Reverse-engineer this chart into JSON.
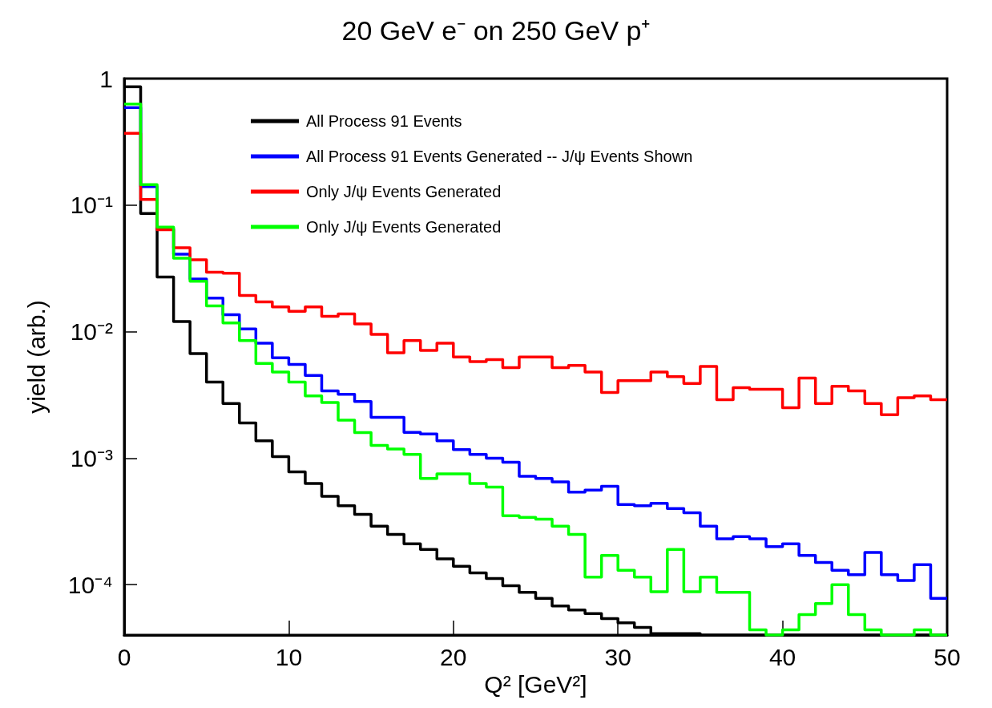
{
  "chart_data": {
    "type": "histogram",
    "title": "20 GeV e⁻ on 250 GeV p⁺",
    "xlabel": "Q² [GeV²]",
    "ylabel": "yield (arb.)",
    "bins": [
      0,
      1,
      2,
      3,
      4,
      5,
      6,
      7,
      8,
      9,
      10,
      11,
      12,
      13,
      14,
      15,
      16,
      17,
      18,
      19,
      20,
      21,
      22,
      23,
      24,
      25,
      26,
      27,
      28,
      29,
      30,
      31,
      32,
      33,
      34,
      35,
      36,
      37,
      38,
      39,
      40,
      41,
      42,
      43,
      44,
      45,
      46,
      47,
      48,
      49,
      50
    ],
    "series": [
      {
        "name": "All Process 91 Events",
        "color": "#000000",
        "values": [
          0.86,
          0.086,
          0.027,
          0.012,
          0.0067,
          0.004,
          0.0027,
          0.0019,
          0.00137,
          0.00103,
          0.00078,
          0.00063,
          0.0005,
          0.00042,
          0.00036,
          0.00029,
          0.00025,
          0.00021,
          0.00019,
          0.00016,
          0.00014,
          0.000124,
          0.000112,
          9.8e-05,
          8.7e-05,
          7.8e-05,
          6.8e-05,
          6.3e-05,
          5.9e-05,
          5.4e-05,
          5e-05,
          4.6e-05,
          4.1e-05,
          4.1e-05,
          4.1e-05,
          null,
          null,
          null,
          null,
          null,
          null,
          null,
          null,
          null,
          null,
          null,
          null,
          null,
          null,
          null
        ]
      },
      {
        "name": "All Process 91 Events Generated -- J/ψ Events Shown",
        "color": "#0000ff",
        "values": [
          0.59,
          0.14,
          0.065,
          0.041,
          0.026,
          0.0184,
          0.0136,
          0.0105,
          0.0081,
          0.0062,
          0.0055,
          0.0045,
          0.0034,
          0.0032,
          0.0028,
          0.0021,
          0.0021,
          0.0016,
          0.00155,
          0.00137,
          0.00117,
          0.00107,
          0.001,
          0.00093,
          0.00072,
          0.00069,
          0.00065,
          0.00054,
          0.00056,
          0.0006,
          0.00043,
          0.00042,
          0.00044,
          0.0004,
          0.00037,
          0.00029,
          0.00023,
          0.00024,
          0.00023,
          0.0002,
          0.00021,
          0.00017,
          0.00015,
          0.00013,
          0.00012,
          0.00018,
          0.00012,
          0.000108,
          0.000144,
          7.8e-05
        ]
      },
      {
        "name": "Only J/ψ Events Generated",
        "color": "#ff0000",
        "values": [
          0.37,
          0.111,
          0.064,
          0.046,
          0.037,
          0.0295,
          0.029,
          0.0193,
          0.0172,
          0.0157,
          0.0145,
          0.0157,
          0.0132,
          0.0138,
          0.0115,
          0.0095,
          0.0068,
          0.0085,
          0.0071,
          0.0081,
          0.0063,
          0.0058,
          0.006,
          0.0052,
          0.0063,
          0.0063,
          0.0052,
          0.0054,
          0.0048,
          0.0033,
          0.0041,
          0.0041,
          0.0048,
          0.0044,
          0.0039,
          0.0053,
          0.0029,
          0.0036,
          0.0035,
          0.0035,
          0.0025,
          0.0043,
          0.0027,
          0.0037,
          0.0034,
          0.0027,
          0.0022,
          0.003,
          0.0031,
          0.0029
        ]
      },
      {
        "name": "Only J/ψ Events Generated",
        "color": "#00ff00",
        "values": [
          0.63,
          0.145,
          0.067,
          0.038,
          0.025,
          0.016,
          0.0117,
          0.0085,
          0.0056,
          0.0048,
          0.004,
          0.0031,
          0.00275,
          0.002,
          0.00159,
          0.00126,
          0.00118,
          0.00107,
          0.00069,
          0.00075,
          0.00075,
          0.00063,
          0.00059,
          0.00035,
          0.00034,
          0.00033,
          0.00029,
          0.00025,
          0.000115,
          0.00017,
          0.00013,
          0.000115,
          8.8e-05,
          0.00019,
          8.8e-05,
          0.000115,
          8.7e-05,
          8.7e-05,
          4.4e-05,
          null,
          4.4e-05,
          5.8e-05,
          7.1e-05,
          0.0001,
          5.8e-05,
          4.4e-05,
          null,
          null,
          4.4e-05,
          null
        ]
      }
    ],
    "xlim": [
      0,
      50
    ],
    "xticks": [
      0,
      10,
      20,
      30,
      40,
      50
    ],
    "ylim": [
      4e-05,
      1
    ],
    "yticks": [
      {
        "value": 0.0001,
        "label": "10⁻⁴"
      },
      {
        "value": 0.001,
        "label": "10⁻³"
      },
      {
        "value": 0.01,
        "label": "10⁻²"
      },
      {
        "value": 0.1,
        "label": "10⁻¹"
      },
      1
    ],
    "log": "y",
    "legend": "top left"
  }
}
